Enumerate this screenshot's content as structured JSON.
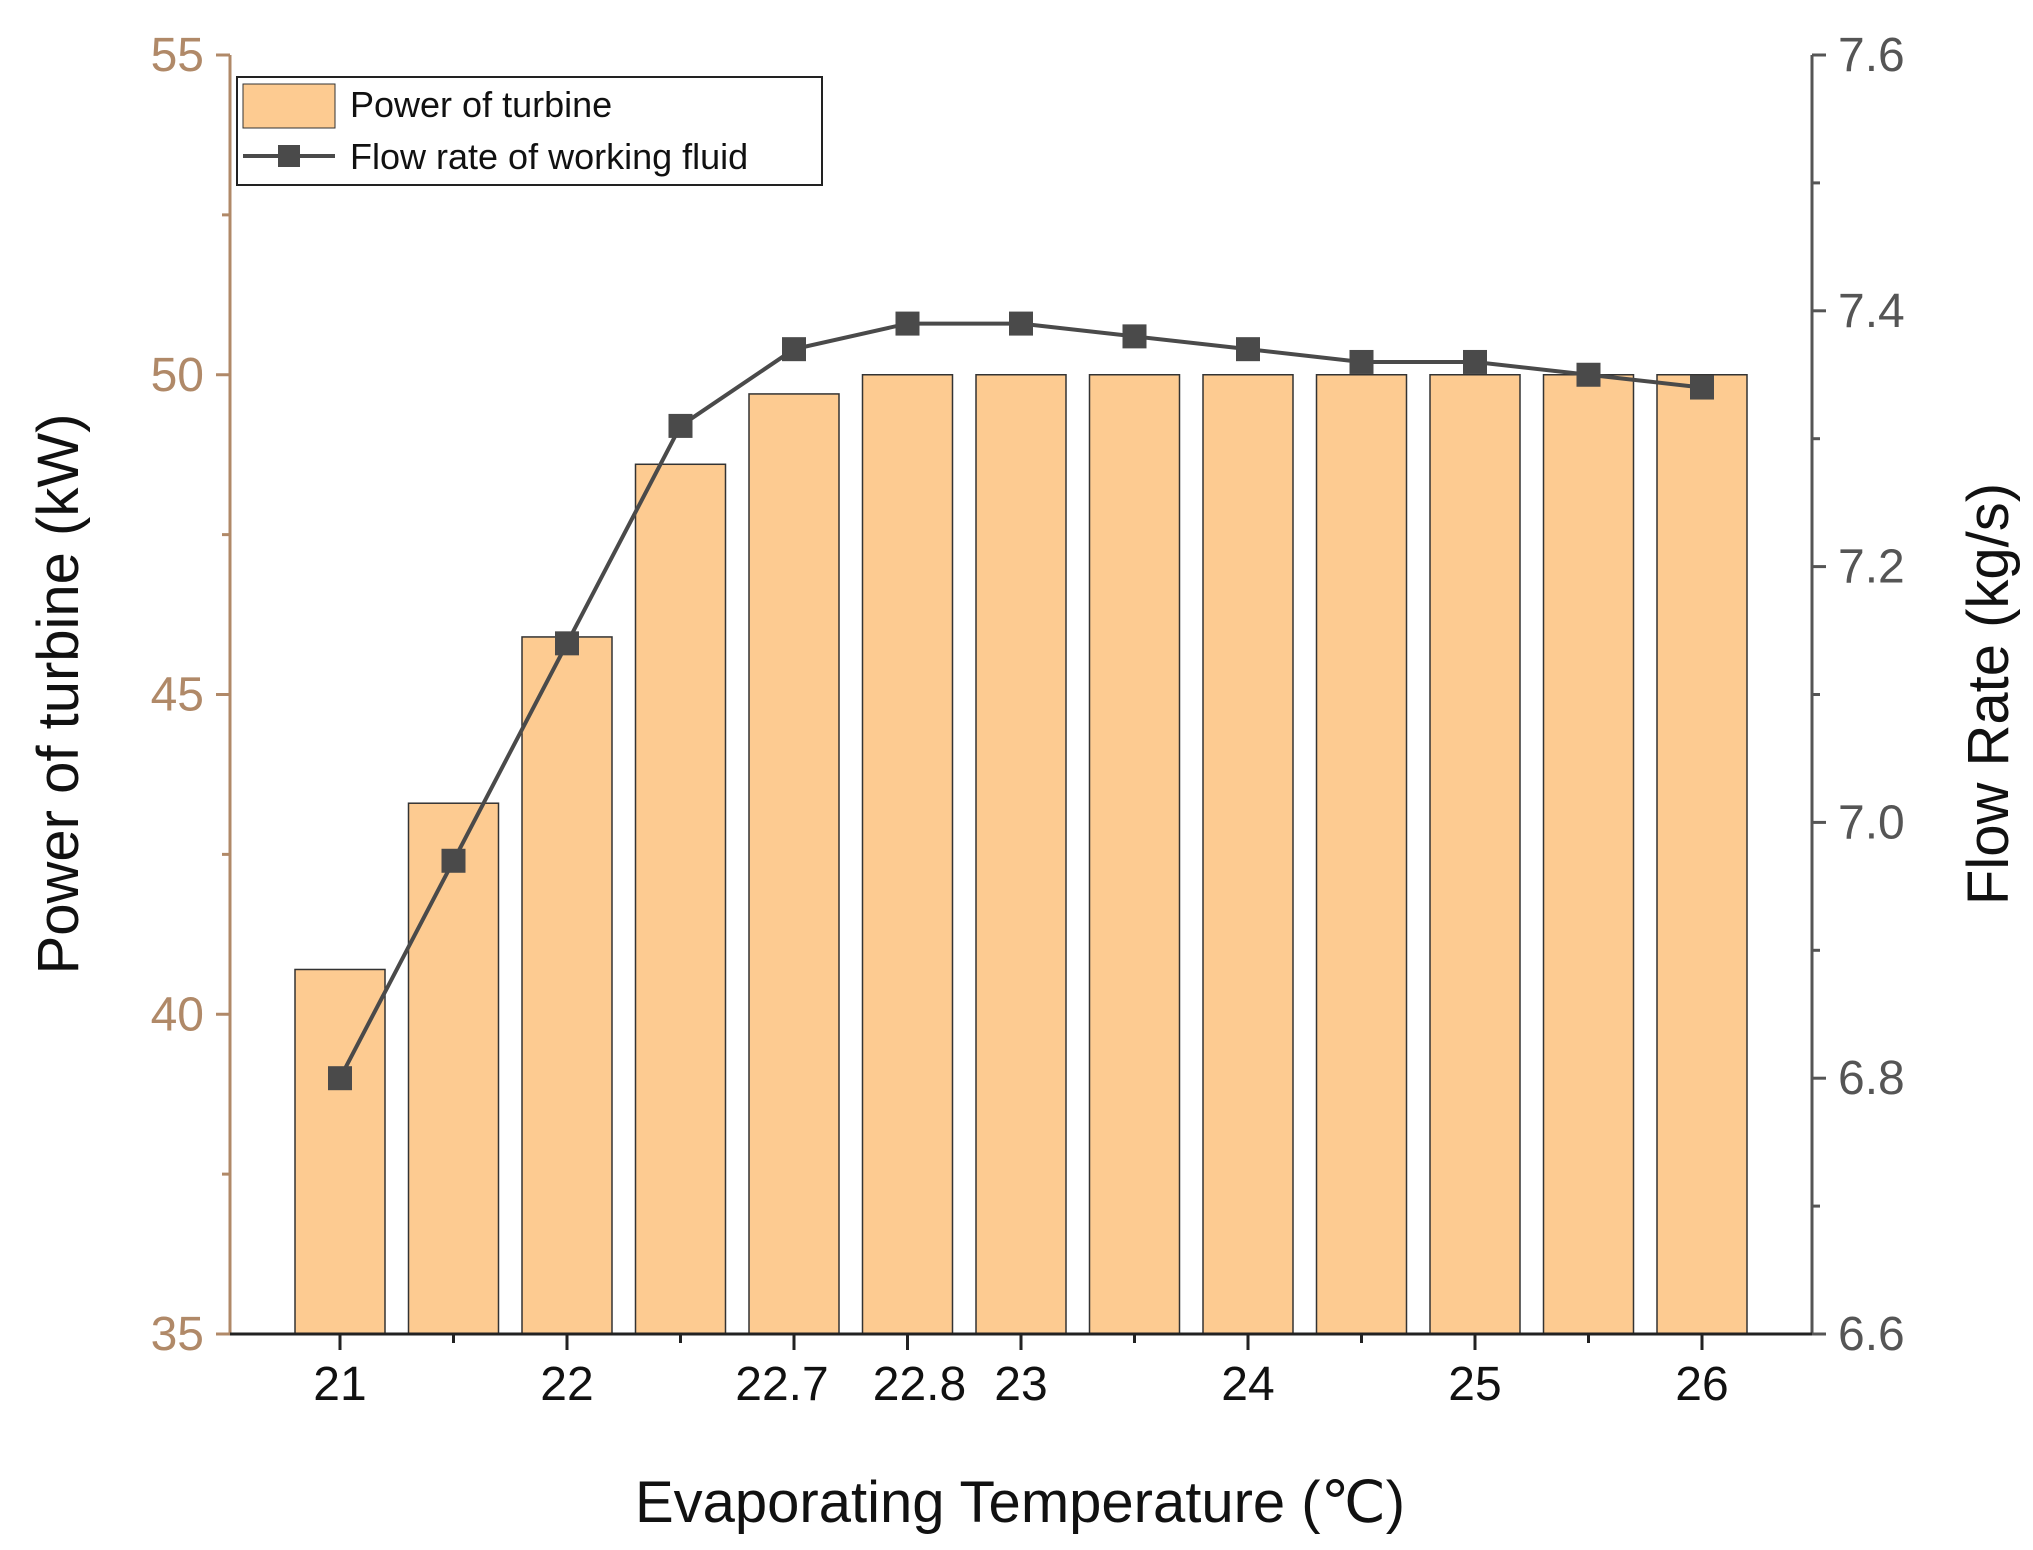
{
  "chart_data": {
    "type": "bar",
    "title": "",
    "xlabel": "Evaporating Temperature (℃)",
    "ylabel": "Power of turbine (kW)",
    "y2label": "Flow Rate (kg/s)",
    "categories": [
      "21",
      "",
      "22",
      "",
      "22.7",
      "22.8",
      "23",
      "",
      "24",
      "",
      "25",
      "",
      "26"
    ],
    "ylim": [
      35,
      55
    ],
    "yticks": [
      "35",
      "40",
      "45",
      "50",
      "55"
    ],
    "y2lim": [
      6.6,
      7.6
    ],
    "y2ticks": [
      "6.6",
      "6.8",
      "7.0",
      "7.2",
      "7.4",
      "7.6"
    ],
    "series": [
      {
        "name": "Power of turbine",
        "type": "bar",
        "axis": "left",
        "color": "#fdcb91",
        "values": [
          40.7,
          43.3,
          45.9,
          48.6,
          49.7,
          50.0,
          50.0,
          50.0,
          50.0,
          50.0,
          50.0,
          50.0,
          50.0
        ]
      },
      {
        "name": "Flow rate of working fluid",
        "type": "line",
        "axis": "right",
        "color": "#4a4a4a",
        "marker": "square",
        "values": [
          6.8,
          6.97,
          7.14,
          7.31,
          7.37,
          7.39,
          7.39,
          7.38,
          7.37,
          7.36,
          7.36,
          7.35,
          7.34
        ]
      }
    ],
    "legend_position": "top-left",
    "grid": false
  },
  "colors": {
    "left_axis": "#b08968",
    "right_axis": "#555555",
    "bar_fill": "#fdcb91",
    "bar_stroke": "#333333",
    "line": "#4a4a4a"
  }
}
